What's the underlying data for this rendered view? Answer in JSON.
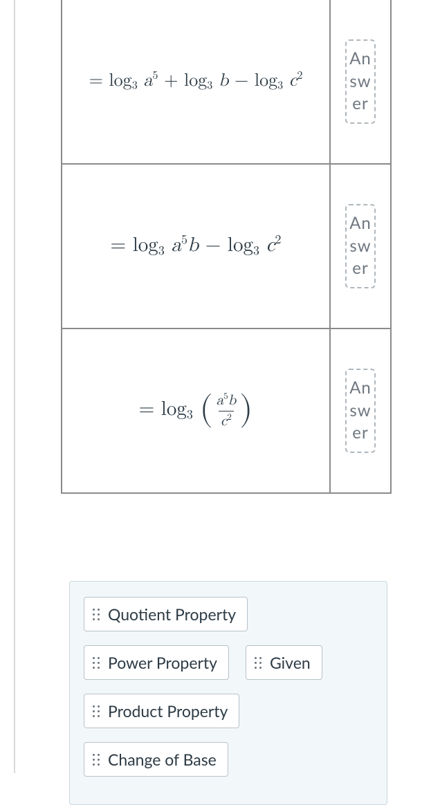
{
  "colors": {
    "text": "#2d3b45",
    "rule": "#d9d9d9",
    "table_border": "#8a8a8a",
    "drop_border": "#b0b7bc",
    "drop_text": "#6f7780",
    "bank_bg": "#f2f7fa",
    "bank_border": "#cdd6dc",
    "chip_bg": "#ffffff",
    "chip_border": "#b9c2c8",
    "grip": "#6f7780"
  },
  "rows": [
    {
      "equation_html": "= <span class=\"rm\">log</span><sub>3</sub>&nbsp;<span class=\"it\">a</span><sup>5</sup> + <span class=\"rm\">log</span><sub>3</sub>&nbsp;<span class=\"it\">b</span> − <span class=\"rm\">log</span><sub>3</sub>&nbsp;<span class=\"it\">c</span><sup>2</sup>",
      "eq_class": "eq1",
      "dropzone_placeholder": "Answer"
    },
    {
      "equation_html": "= <span class=\"rm\">log</span><sub>3</sub>&nbsp;<span class=\"it\">a</span><sup>5</sup><span class=\"it\">b</span> − <span class=\"rm\">log</span><sub>3</sub>&nbsp;<span class=\"it\">c</span><sup>2</sup>",
      "eq_class": "eq2",
      "dropzone_placeholder": "Answer"
    },
    {
      "equation_html": "= <span class=\"rm\">log</span><sub>3</sub> <span class=\"paren-wrap\"><span class=\"paren\">(</span><span class=\"frac\"><span class=\"num\"><span class=\"it\">a</span><sup>5</sup><span class=\"it\">b</span></span><span class=\"den\"><span class=\"it\">c</span><sup>2</sup></span></span><span class=\"paren\">)</span></span>",
      "eq_class": "eq3",
      "dropzone_placeholder": "Answer"
    }
  ],
  "bank_items": [
    {
      "label": "Quotient Property"
    },
    {
      "label": "Power Property"
    },
    {
      "label": "Given"
    },
    {
      "label": "Product Property"
    },
    {
      "label": "Change of Base"
    }
  ]
}
